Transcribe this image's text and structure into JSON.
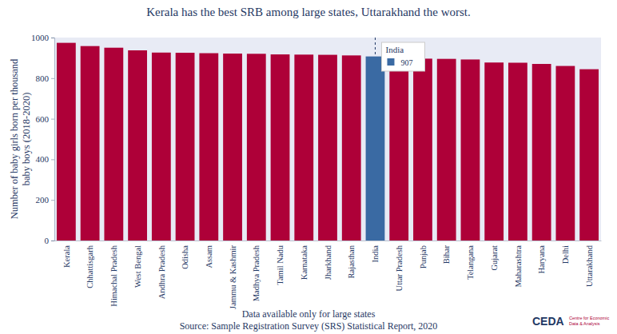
{
  "chart_data": {
    "type": "bar",
    "title": "Kerala has the best SRB among large states, Uttarakhand the worst.",
    "ylabel": [
      "Number of baby girls born per thousand",
      "baby boys (2018-2020)"
    ],
    "categories": [
      "Kerala",
      "Chhattisgarh",
      "Himachal Pradesh",
      "West Bengal",
      "Andhra Pradesh",
      "Odisha",
      "Assam",
      "Jammu & Kashmir",
      "Madhya Pradesh",
      "Tamil Nadu",
      "Karnataka",
      "Jharkhand",
      "Rajasthan",
      "India",
      "Uttar Pradesh",
      "Punjab",
      "Bihar",
      "Telangana",
      "Gujarat",
      "Maharashtra",
      "Haryana",
      "Delhi",
      "Uttarakhand"
    ],
    "values": [
      974,
      958,
      950,
      937,
      926,
      925,
      923,
      921,
      920,
      917,
      916,
      915,
      912,
      907,
      897,
      896,
      895,
      892,
      877,
      876,
      870,
      860,
      844
    ],
    "colors": [
      "#ae0038",
      "#ae0038",
      "#ae0038",
      "#ae0038",
      "#ae0038",
      "#ae0038",
      "#ae0038",
      "#ae0038",
      "#ae0038",
      "#ae0038",
      "#ae0038",
      "#ae0038",
      "#ae0038",
      "#3a6aa3",
      "#ae0038",
      "#ae0038",
      "#ae0038",
      "#ae0038",
      "#ae0038",
      "#ae0038",
      "#ae0038",
      "#ae0038",
      "#ae0038"
    ],
    "ylim": [
      0,
      1000
    ],
    "yticks": [
      0,
      200,
      400,
      600,
      800,
      1000
    ],
    "grid": false,
    "annotation": {
      "label": "India",
      "value": 907
    },
    "footnote": "Data available only for large states",
    "source": "Source: Sample Registration Survey (SRS) Statistical Report, 2020",
    "logo": {
      "text": "CEDA",
      "caption": [
        "Centre for Economic",
        "Data & Analysis"
      ]
    }
  }
}
